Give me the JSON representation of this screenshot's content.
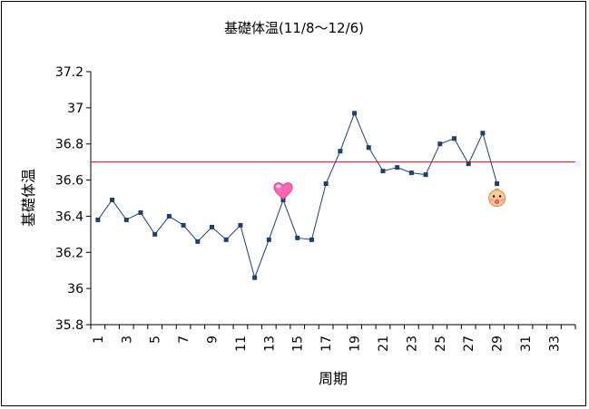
{
  "chart_data": {
    "type": "line",
    "title": "基礎体温(11/8〜12/6)",
    "xlabel": "周期",
    "ylabel": "基礎体温",
    "ylim": [
      35.8,
      37.2
    ],
    "yticks": [
      "35.8",
      "36",
      "36.2",
      "36.4",
      "36.6",
      "36.8",
      "37",
      "37.2"
    ],
    "xlim": [
      1,
      33
    ],
    "xticks": [
      "1",
      "3",
      "5",
      "7",
      "9",
      "11",
      "13",
      "15",
      "17",
      "19",
      "21",
      "23",
      "25",
      "27",
      "29",
      "31",
      "33"
    ],
    "reference_line": {
      "value": 36.7,
      "color": "#ff0000"
    },
    "grid": false,
    "series": [
      {
        "color": "#1f3f6e",
        "marker_color": "#1f3f6e",
        "x": [
          1,
          2,
          3,
          4,
          5,
          6,
          7,
          8,
          9,
          10,
          11,
          12,
          13,
          14,
          15,
          16,
          17,
          18,
          19,
          20,
          21,
          22,
          23,
          24,
          25,
          26,
          27,
          28,
          29
        ],
        "values": [
          36.38,
          36.49,
          36.38,
          36.42,
          36.3,
          36.4,
          36.35,
          36.26,
          36.34,
          36.27,
          36.35,
          36.06,
          36.27,
          36.49,
          36.28,
          36.27,
          36.58,
          36.76,
          36.97,
          36.78,
          36.65,
          36.67,
          36.64,
          36.63,
          36.8,
          36.83,
          36.69,
          36.86,
          36.58
        ]
      }
    ],
    "annotations": [
      {
        "icon": "heart-icon",
        "x": 14,
        "y": 36.54
      },
      {
        "icon": "baby-face-icon",
        "x": 29,
        "y": 36.5
      }
    ]
  }
}
